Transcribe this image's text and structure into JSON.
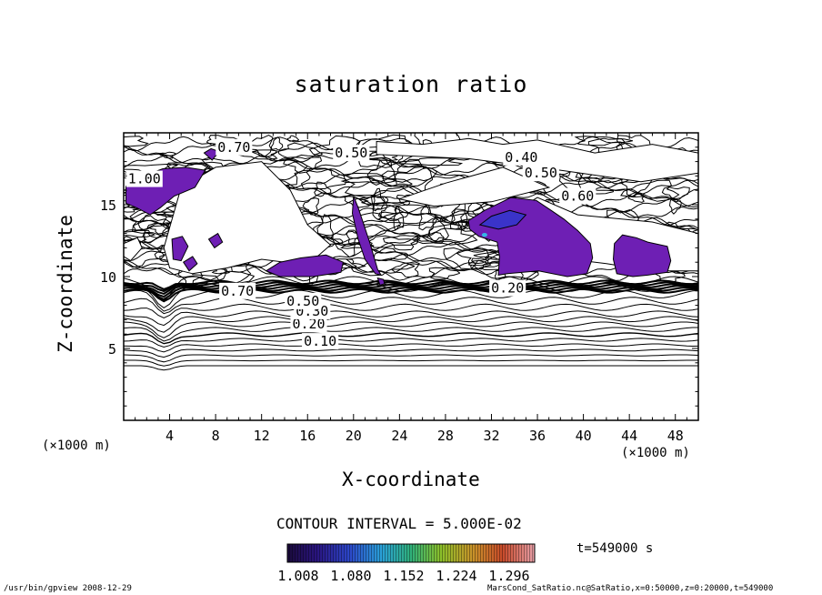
{
  "chart_data": {
    "type": "contour",
    "title": "saturation ratio",
    "xlabel": "X-coordinate",
    "ylabel": "Z-coordinate",
    "x_unit_left": "(×1000 m)",
    "x_unit_right": "(×1000 m)",
    "xlim": [
      0,
      50
    ],
    "ylim": [
      0,
      20
    ],
    "x_ticks": [
      4,
      8,
      12,
      16,
      20,
      24,
      28,
      32,
      36,
      40,
      44,
      48
    ],
    "y_ticks": [
      5,
      10,
      15
    ],
    "contour_interval_label": "CONTOUR INTERVAL = 5.000E-02",
    "contour_labels": [
      {
        "text": "0.10",
        "x": 17.1,
        "z": 5.5
      },
      {
        "text": "0.20",
        "x": 16.1,
        "z": 6.7
      },
      {
        "text": "0.30",
        "x": 16.4,
        "z": 7.6
      },
      {
        "text": "0.50",
        "x": 15.6,
        "z": 8.3
      },
      {
        "text": "0.70",
        "x": 9.9,
        "z": 9.0
      },
      {
        "text": "0.50",
        "x": 19.8,
        "z": 18.6
      },
      {
        "text": "0.40",
        "x": 34.6,
        "z": 18.3
      },
      {
        "text": "0.50",
        "x": 36.3,
        "z": 17.2
      },
      {
        "text": "0.60",
        "x": 39.5,
        "z": 15.6
      },
      {
        "text": "0.20",
        "x": 33.4,
        "z": 9.2
      },
      {
        "text": "0.70",
        "x": 9.6,
        "z": 19.0
      },
      {
        "text": "1.00",
        "x": 1.8,
        "z": 16.8
      }
    ],
    "shaded_levels": {
      "colorbar_labels": [
        "1.008",
        "1.080",
        "1.152",
        "1.224",
        "1.296"
      ],
      "colorbar_range": [
        1.008,
        1.296
      ]
    },
    "supersaturated_regions_x": [
      [
        0.3,
        7.2
      ],
      [
        20.0,
        22.5
      ],
      [
        29.5,
        41.0
      ],
      [
        42.5,
        48.0
      ]
    ],
    "grid": false,
    "legend": "bottom-center colorbar"
  },
  "time_label": "t=549000 s",
  "footer_left": "/usr/bin/gpview   2008-12-29",
  "footer_right": "MarsCond_SatRatio.nc@SatRatio,x=0:50000,z=0:20000,t=549000",
  "colors": {
    "supersat": "#6e1fb4",
    "supersat_core": "#3a33c9",
    "axis": "#000000"
  }
}
